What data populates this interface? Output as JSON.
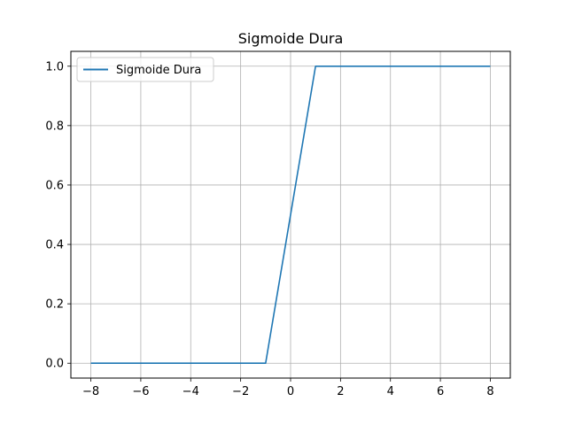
{
  "chart_data": {
    "type": "line",
    "title": "Sigmoide Dura",
    "xlabel": "",
    "ylabel": "",
    "xlim": [
      -8.8,
      8.8
    ],
    "ylim": [
      -0.05,
      1.05
    ],
    "x_ticks": [
      -8,
      -6,
      -4,
      -2,
      0,
      2,
      4,
      6,
      8
    ],
    "x_tick_labels": [
      "−8",
      "−6",
      "−4",
      "−2",
      "0",
      "2",
      "4",
      "6",
      "8"
    ],
    "y_ticks": [
      0.0,
      0.2,
      0.4,
      0.6,
      0.8,
      1.0
    ],
    "y_tick_labels": [
      "0.0",
      "0.2",
      "0.4",
      "0.6",
      "0.8",
      "1.0"
    ],
    "grid": true,
    "legend_position": "top-left",
    "series": [
      {
        "name": "Sigmoide Dura",
        "color": "#1f77b4",
        "x": [
          -8,
          -1,
          1,
          8
        ],
        "y": [
          0.0,
          0.0,
          1.0,
          1.0
        ]
      }
    ]
  }
}
